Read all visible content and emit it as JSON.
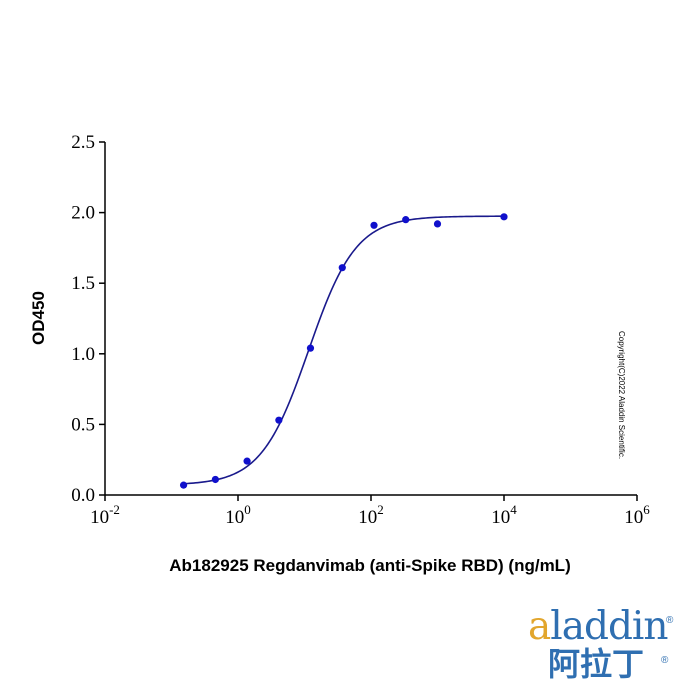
{
  "chart_data": {
    "type": "scatter",
    "xscale": "log10",
    "xlim_exp": [
      -2,
      6
    ],
    "ylim": [
      0,
      2.5
    ],
    "x_ticks": [
      {
        "base": "10",
        "exp": "-2",
        "value_exp": -2
      },
      {
        "base": "10",
        "exp": "0",
        "value_exp": 0
      },
      {
        "base": "10",
        "exp": "2",
        "value_exp": 2
      },
      {
        "base": "10",
        "exp": "4",
        "value_exp": 4
      },
      {
        "base": "10",
        "exp": "6",
        "value_exp": 6
      }
    ],
    "y_ticks": [
      "0.0",
      "0.5",
      "1.0",
      "1.5",
      "2.0",
      "2.5"
    ],
    "y_tick_values": [
      0,
      0.5,
      1.0,
      1.5,
      2.0,
      2.5
    ],
    "xlabel": "Ab182925 Regdanvimab (anti-Spike RBD) (ng/mL)",
    "ylabel": "OD450",
    "series": [
      {
        "name": "Regdanvimab",
        "color": "#1010cc",
        "points": [
          {
            "x": 0.152,
            "y": 0.07
          },
          {
            "x": 0.457,
            "y": 0.11
          },
          {
            "x": 1.37,
            "y": 0.24
          },
          {
            "x": 4.12,
            "y": 0.53
          },
          {
            "x": 12.3,
            "y": 1.04
          },
          {
            "x": 37.0,
            "y": 1.61
          },
          {
            "x": 111,
            "y": 1.91
          },
          {
            "x": 333,
            "y": 1.95
          },
          {
            "x": 1000,
            "y": 1.92
          },
          {
            "x": 10000,
            "y": 1.97
          }
        ],
        "fit": {
          "model": "4PL",
          "bottom": 0.07,
          "top": 1.975,
          "log_ec50": 1.06,
          "hill": 1.22
        }
      }
    ],
    "fit_line_color": "#1a1a8c"
  },
  "copyright": "Copyright(C)2022 Aladdin Scientific.",
  "logo": {
    "en_accent": "a",
    "en_rest": "laddin",
    "cn": "阿拉丁",
    "reg": "®"
  }
}
